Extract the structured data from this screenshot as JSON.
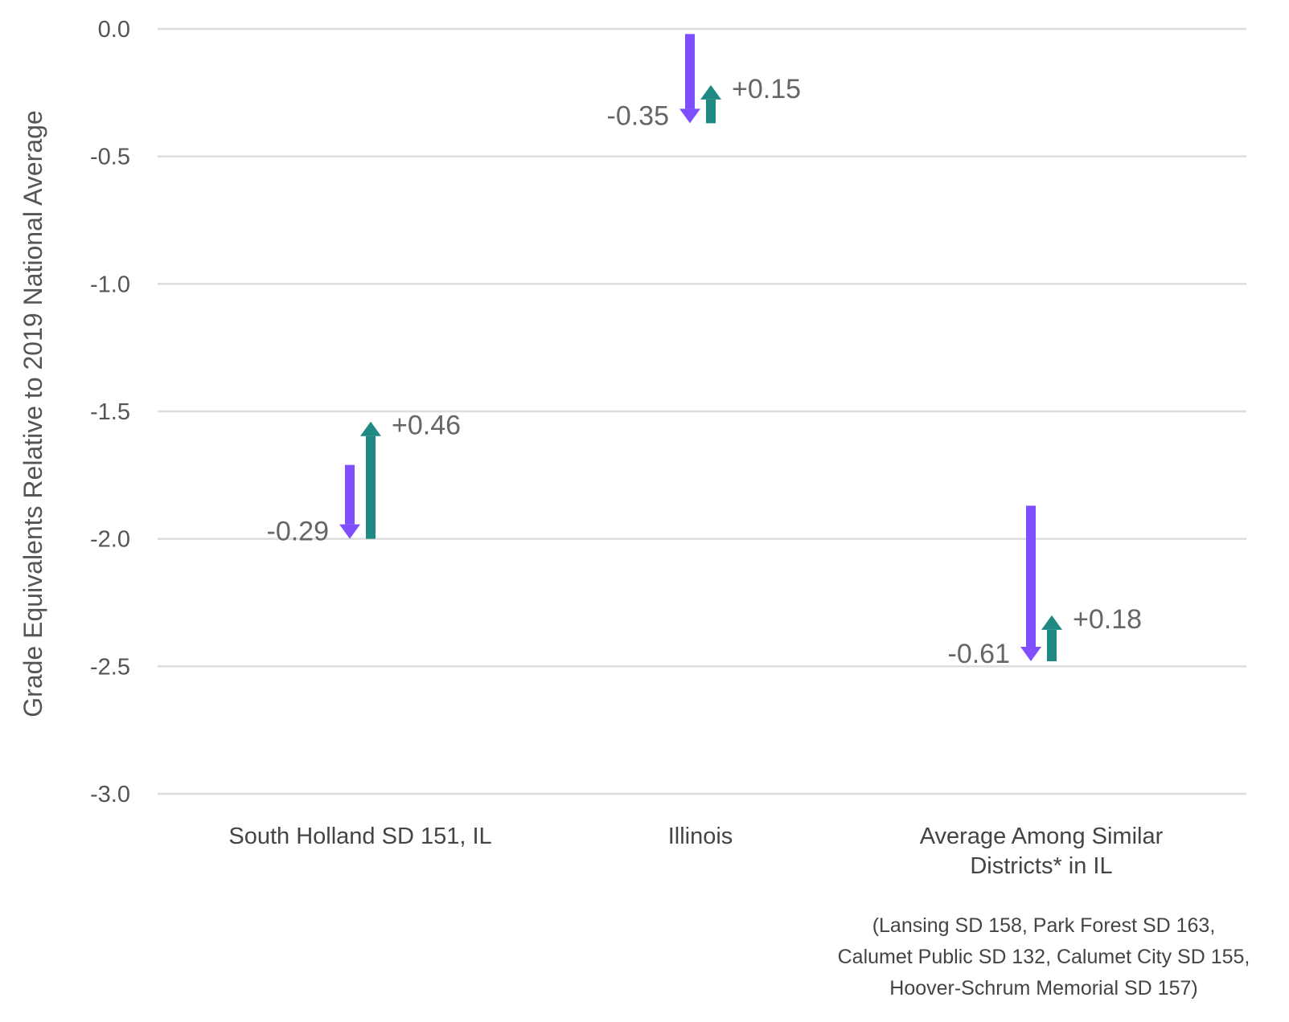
{
  "chart_data": {
    "type": "arrow-range",
    "ylabel": "Grade Equivalents Relative to 2019 National Average",
    "ylim": [
      -3.0,
      0.0
    ],
    "yticks": [
      0.0,
      -0.5,
      -1.0,
      -1.5,
      -2.0,
      -2.5,
      -3.0
    ],
    "ytick_labels": [
      "0.0",
      "-0.5",
      "-1.0",
      "-1.5",
      "-2.0",
      "-2.5",
      "-3.0"
    ],
    "grid": true,
    "categories": [
      {
        "label_lines": [
          "South Holland SD 151, IL"
        ]
      },
      {
        "label_lines": [
          "Illinois"
        ]
      },
      {
        "label_lines": [
          "Average Among Similar",
          "Districts* in IL"
        ]
      }
    ],
    "series": [
      {
        "color": "#7f4fff",
        "direction": "down",
        "points": [
          {
            "start": -1.71,
            "end": -2.0,
            "label": "-0.29"
          },
          {
            "start": -0.02,
            "end": -0.37,
            "label": "-0.35"
          },
          {
            "start": -1.87,
            "end": -2.48,
            "label": "-0.61"
          }
        ]
      },
      {
        "color": "#1f8a84",
        "direction": "up",
        "points": [
          {
            "start": -2.0,
            "end": -1.54,
            "label": "+0.46"
          },
          {
            "start": -0.37,
            "end": -0.22,
            "label": "+0.15"
          },
          {
            "start": -2.48,
            "end": -2.3,
            "label": "+0.18"
          }
        ]
      }
    ],
    "footnote_lines": [
      "(Lansing SD 158, Park Forest SD 163,",
      "Calumet Public SD 132, Calumet City SD 155,",
      "Hoover-Schrum Memorial SD 157)"
    ]
  }
}
